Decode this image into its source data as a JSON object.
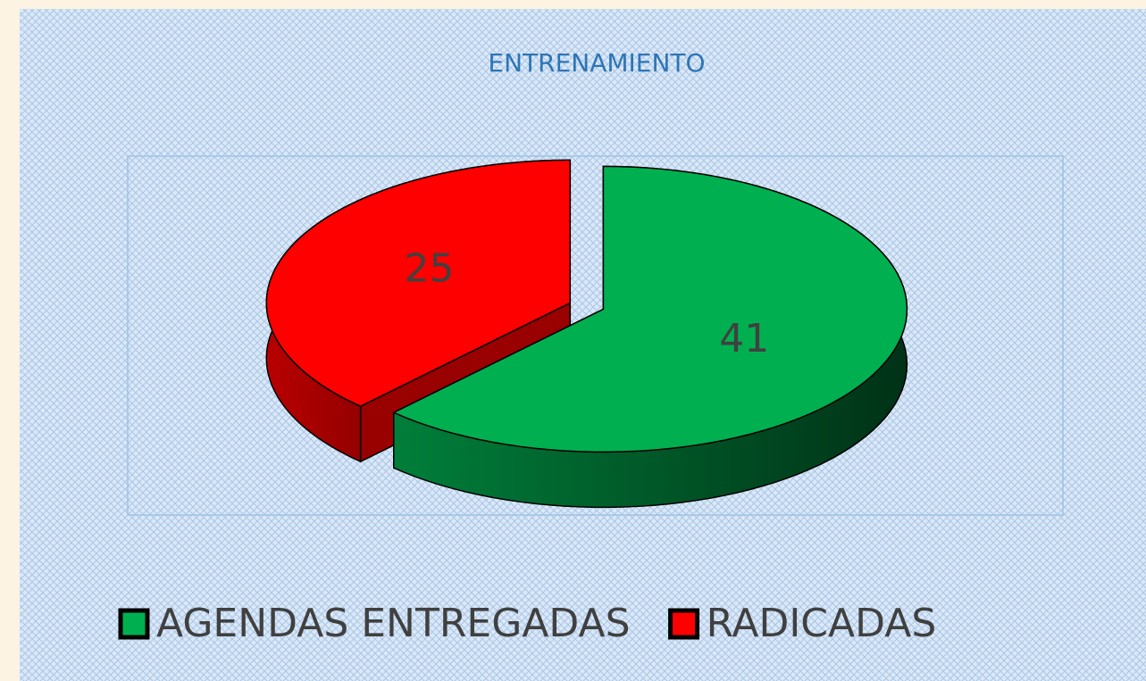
{
  "chart_data": {
    "type": "pie",
    "title": "ENTRENAMIENTO",
    "categories": [
      "AGENDAS ENTREGADAS",
      "RADICADAS"
    ],
    "values": [
      41,
      25
    ],
    "colors": [
      "#00b050",
      "#ff0000"
    ]
  }
}
